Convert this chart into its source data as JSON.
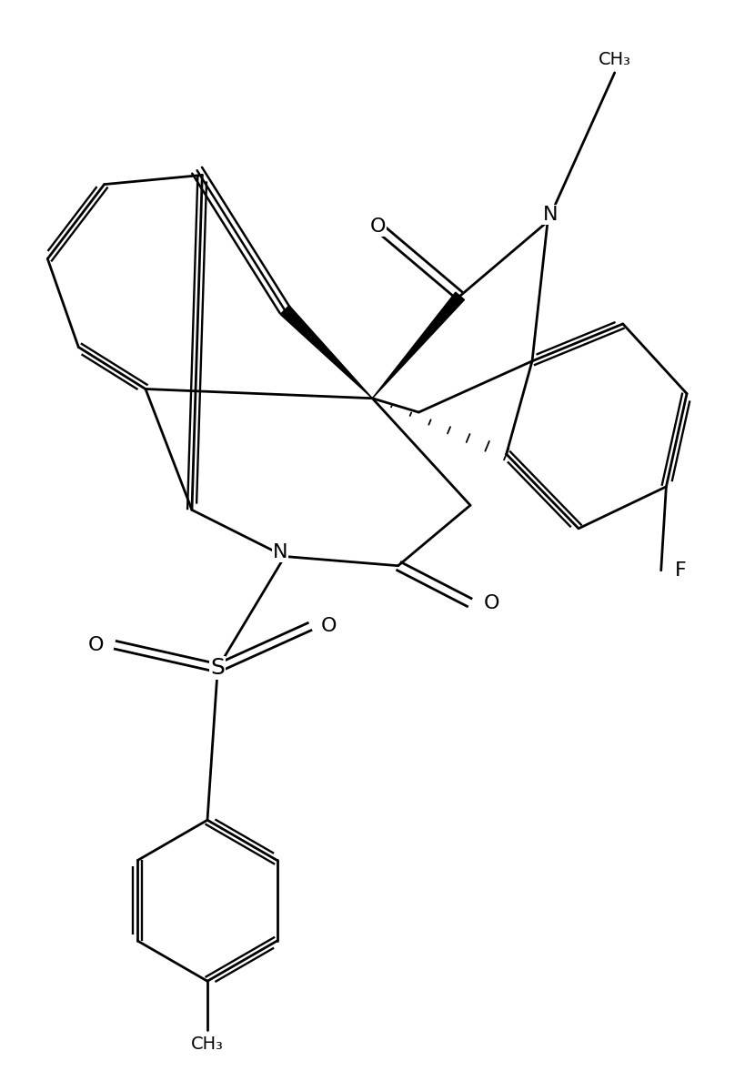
{
  "figure_width": 8.3,
  "figure_height": 11.77,
  "dpi": 100,
  "background_color": "#ffffff",
  "line_color": "#000000",
  "bond_lw": 2.0,
  "font_size": 16,
  "xlim": [
    0,
    83
  ],
  "ylim": [
    0,
    118
  ]
}
